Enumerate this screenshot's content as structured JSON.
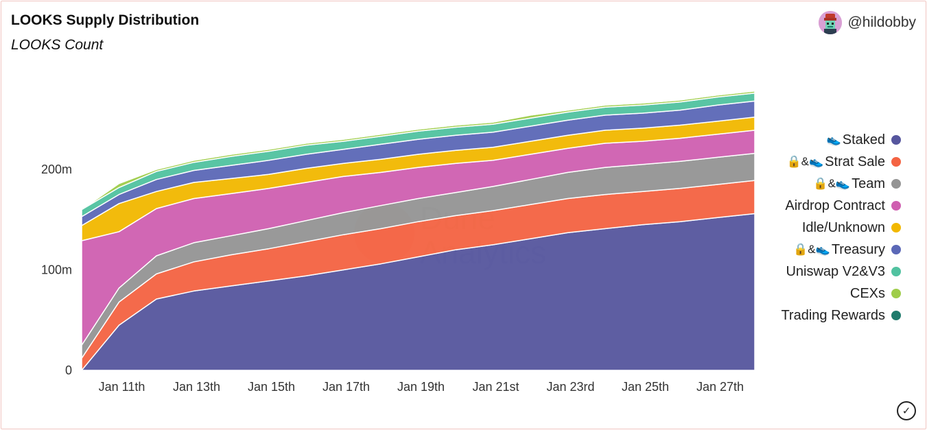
{
  "header": {
    "title": "LOOKS Supply Distribution",
    "subtitle": "LOOKS Count",
    "author": "@hildobby"
  },
  "watermark": {
    "line1": "Dune",
    "line2": "Analytics"
  },
  "legend_glyphs": {
    "lock": "🔒",
    "amp": "&",
    "sneaker": "👟"
  },
  "chart_data": {
    "type": "area",
    "stacked": true,
    "x": [
      "Jan 10",
      "Jan 11",
      "Jan 12",
      "Jan 13",
      "Jan 14",
      "Jan 15",
      "Jan 16",
      "Jan 17",
      "Jan 18",
      "Jan 19",
      "Jan 20",
      "Jan 21",
      "Jan 22",
      "Jan 23",
      "Jan 24",
      "Jan 25",
      "Jan 26",
      "Jan 27",
      "Jan 28"
    ],
    "x_tick_labels": [
      "Jan 11th",
      "Jan 13th",
      "Jan 15th",
      "Jan 17th",
      "Jan 19th",
      "Jan 21st",
      "Jan 23rd",
      "Jan 25th",
      "Jan 27th"
    ],
    "y_tick_labels": [
      "0",
      "100m",
      "200m"
    ],
    "ylim": [
      0,
      310
    ],
    "y_unit": "million LOOKS",
    "legend_position": "right",
    "series": [
      {
        "name": "Staked",
        "color": "#56569e",
        "values": [
          0,
          45,
          71,
          79,
          84,
          89,
          94,
          100,
          106,
          113,
          120,
          125,
          131,
          137,
          141,
          145,
          148,
          152,
          156
        ]
      },
      {
        "name": "Strat Sale",
        "glyph": "sneaker",
        "color": "#f46342",
        "values": [
          12,
          23,
          25,
          29,
          31,
          32,
          34,
          35,
          35,
          35,
          34,
          34,
          34,
          34,
          34,
          33,
          33,
          33,
          33
        ]
      },
      {
        "name": "Team",
        "glyph": "sneaker",
        "color": "#949494",
        "values": [
          13,
          14,
          18,
          19,
          19,
          20,
          21,
          22,
          23,
          23,
          23,
          24,
          25,
          26,
          27,
          27,
          27,
          27,
          27
        ]
      },
      {
        "name": "Airdrop Contract",
        "color": "#cf5fb0",
        "values": [
          104,
          56,
          47,
          44,
          42,
          40,
          38,
          36,
          33,
          31,
          29,
          26,
          25,
          24,
          24,
          23,
          23,
          23,
          23
        ]
      },
      {
        "name": "Idle/Unknown",
        "color": "#f2b800",
        "values": [
          15,
          28,
          17,
          16,
          15,
          14,
          14,
          13,
          13,
          13,
          13,
          13,
          13,
          13,
          13,
          13,
          13,
          13,
          13
        ]
      },
      {
        "name": "Treasury",
        "glyph": "sneaker",
        "color": "#5b68b7",
        "values": [
          9,
          9,
          12,
          12,
          13,
          14,
          14,
          14,
          15,
          15,
          15,
          15,
          15,
          15,
          15,
          15,
          15,
          16,
          16
        ]
      },
      {
        "name": "Uniswap V2&V3",
        "color": "#51c2a0",
        "values": [
          7,
          7,
          8,
          8,
          9,
          9,
          9,
          8,
          8,
          8,
          8,
          8,
          8,
          8,
          8,
          8,
          8,
          8,
          8
        ]
      },
      {
        "name": "CEXs",
        "color": "#9fcd4a",
        "values": [
          0,
          4,
          2,
          2,
          2,
          2,
          2,
          2,
          2,
          2,
          2,
          2,
          3,
          2,
          2,
          2,
          2,
          2,
          2
        ]
      },
      {
        "name": "Trading Rewards",
        "color": "#1f7b6c",
        "values": [
          0,
          1,
          1,
          1,
          1,
          1,
          1,
          1,
          1,
          1,
          1,
          1,
          1,
          1,
          1,
          1,
          1,
          1,
          1
        ]
      }
    ]
  }
}
